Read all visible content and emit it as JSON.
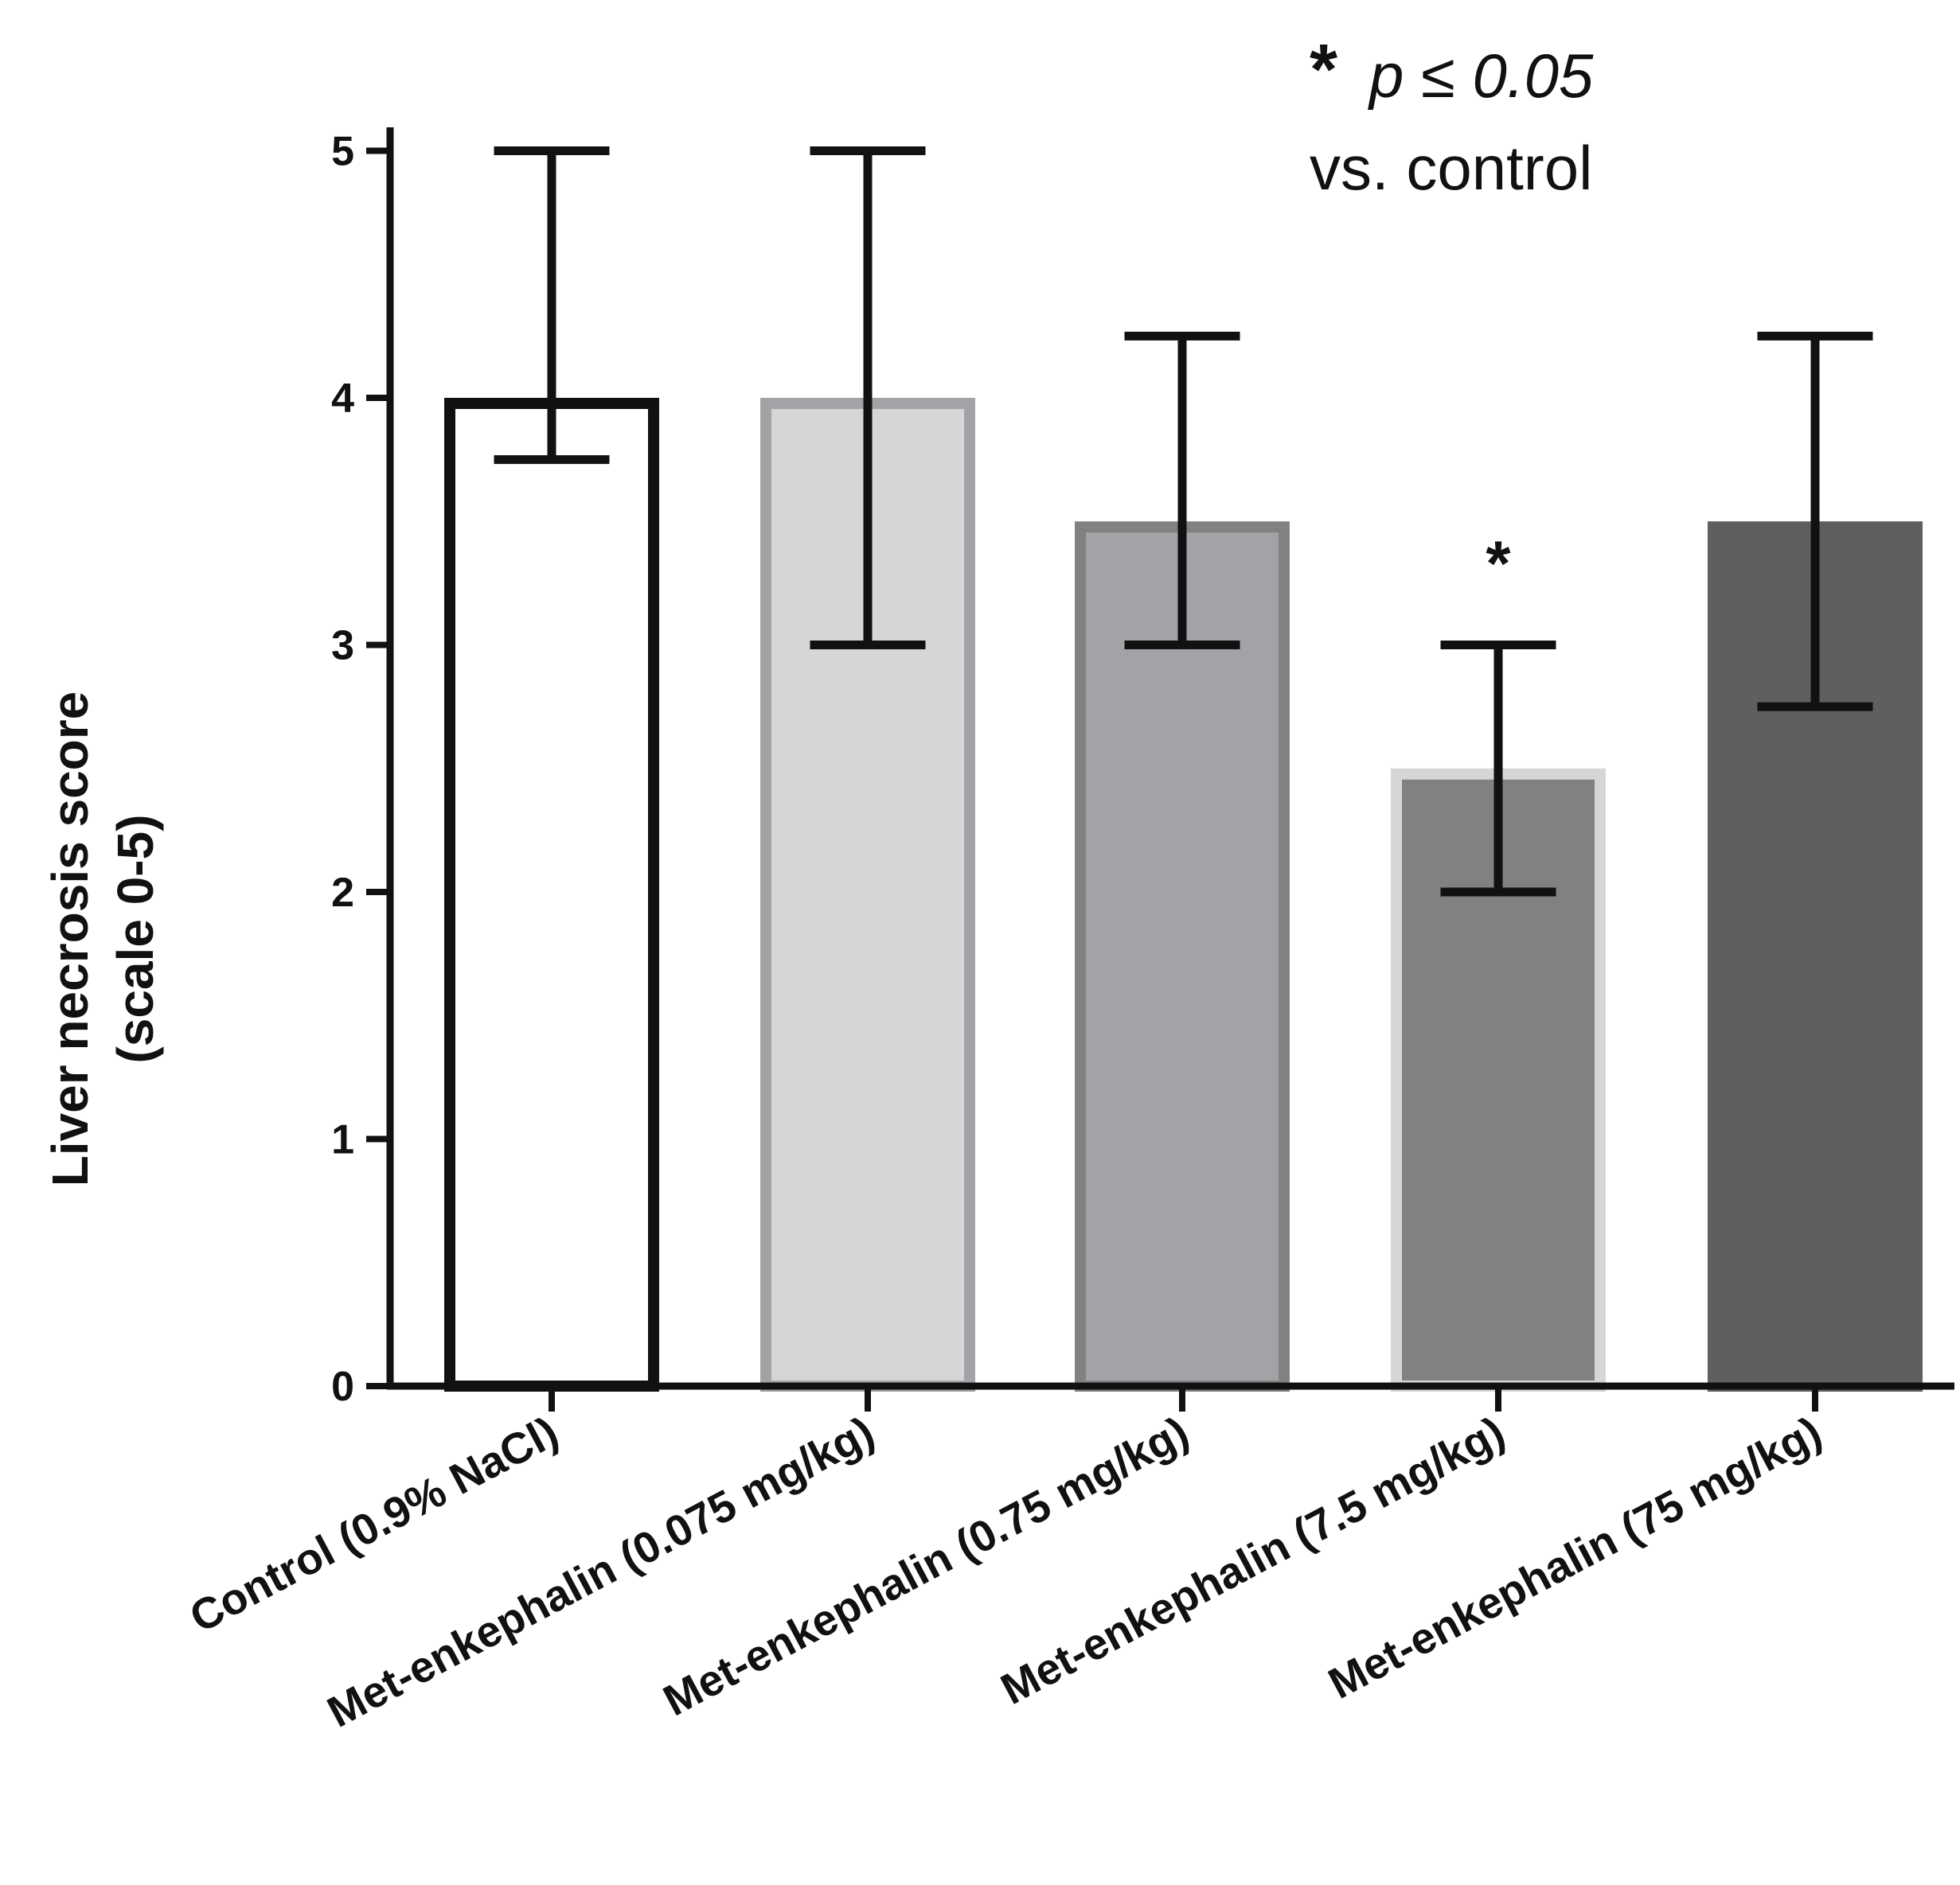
{
  "chart_data": {
    "type": "bar",
    "title": "",
    "xlabel": "",
    "ylabel": [
      "Liver necrosis score",
      "(scale 0-5)"
    ],
    "ylim": [
      0,
      5
    ],
    "yticks": [
      "0",
      "1",
      "2",
      "3",
      "4",
      "5"
    ],
    "categories": [
      "Control (0.9% NaCl)",
      "Met-enkephalin (0.075 mg/kg)",
      "Met-enkephalin (0.75 mg/kg)",
      "Met-enkephalin (7.5 mg/kg)",
      "Met-enkephalin (75 mg/kg)"
    ],
    "values": [
      4,
      4,
      3.5,
      2.5,
      3.5
    ],
    "error_low": [
      3.75,
      3,
      3,
      2,
      2.75
    ],
    "error_high": [
      5,
      5,
      4.25,
      3,
      4.25
    ],
    "significant": [
      false,
      false,
      false,
      true,
      false
    ],
    "bar_fill_colors": [
      "#ffffff",
      "#d6d6d6",
      "#a2a3a6",
      "#818181",
      "#5f5f5f"
    ],
    "bar_edge_colors": [
      "#111111",
      "#a2a3a6",
      "#818181",
      "#d6d6d6",
      "#5f5f5f"
    ],
    "significance_marker": "*",
    "annotation": {
      "star": "*",
      "line1": "p ≤ 0.05",
      "line2": "vs. control"
    }
  }
}
